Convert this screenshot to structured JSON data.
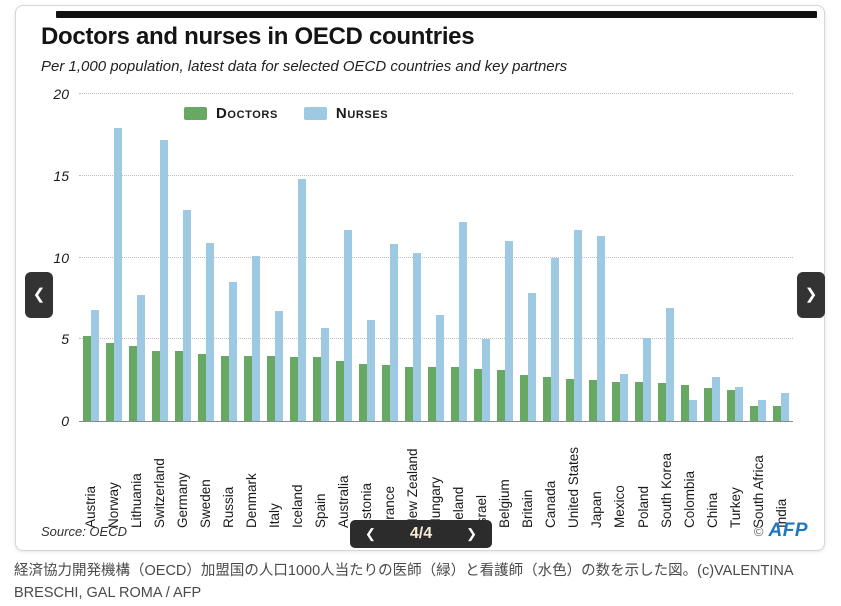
{
  "header": {
    "title": "Doctors and nurses in OECD countries",
    "subtitle": "Per 1,000 population, latest data for selected OECD countries and key partners"
  },
  "footer": {
    "source": "Source: OECD",
    "copyright_symbol": "©",
    "afp_logo": "AFP"
  },
  "carousel": {
    "prev_arrow": "❮",
    "next_arrow": "❯",
    "pager": {
      "prev": "❮",
      "page": "4/4",
      "next": "❯"
    }
  },
  "caption": "経済協力開発機構（OECD）加盟国の人口1000人当たりの医師（緑）と看護師（水色）の数を示した図。(c)VALENTINA BRESCHI, GAL ROMA / AFP",
  "chart_data": {
    "type": "bar",
    "title": "Doctors and nurses in OECD countries",
    "subtitle": "Per 1,000 population, latest data for selected OECD countries and key partners",
    "categories": [
      "Austria",
      "Norway",
      "Lithuania",
      "Switzerland",
      "Germany",
      "Sweden",
      "Russia",
      "Denmark",
      "Italy",
      "Iceland",
      "Spain",
      "Australia",
      "Estonia",
      "France",
      "New Zealand",
      "Hungary",
      "Ireland",
      "Israel",
      "Belgium",
      "Britain",
      "Canada",
      "United States",
      "Japan",
      "Mexico",
      "Poland",
      "South Korea",
      "Colombia",
      "China",
      "Turkey",
      "South Africa",
      "India"
    ],
    "series": [
      {
        "name": "Doctors",
        "color": "#67a963",
        "values": [
          5.2,
          4.8,
          4.6,
          4.3,
          4.3,
          4.1,
          4.0,
          4.0,
          4.0,
          3.9,
          3.9,
          3.7,
          3.5,
          3.4,
          3.3,
          3.3,
          3.3,
          3.2,
          3.1,
          2.8,
          2.7,
          2.6,
          2.5,
          2.4,
          2.4,
          2.3,
          2.2,
          2.0,
          1.9,
          0.9,
          0.9
        ]
      },
      {
        "name": "Nurses",
        "color": "#9ec9e3",
        "values": [
          6.8,
          17.9,
          7.7,
          17.2,
          12.9,
          10.9,
          8.5,
          10.1,
          6.7,
          14.8,
          5.7,
          11.7,
          6.2,
          10.8,
          10.3,
          6.5,
          12.2,
          5.0,
          11.0,
          7.8,
          10.0,
          11.7,
          11.3,
          2.9,
          5.1,
          6.9,
          1.3,
          2.7,
          2.1,
          1.3,
          1.7
        ]
      }
    ],
    "ylim": [
      0,
      20
    ],
    "yticks": [
      0,
      5,
      10,
      15,
      20
    ],
    "grid": "horizontal-dotted",
    "legend_position": "top-center",
    "source": "OECD"
  }
}
